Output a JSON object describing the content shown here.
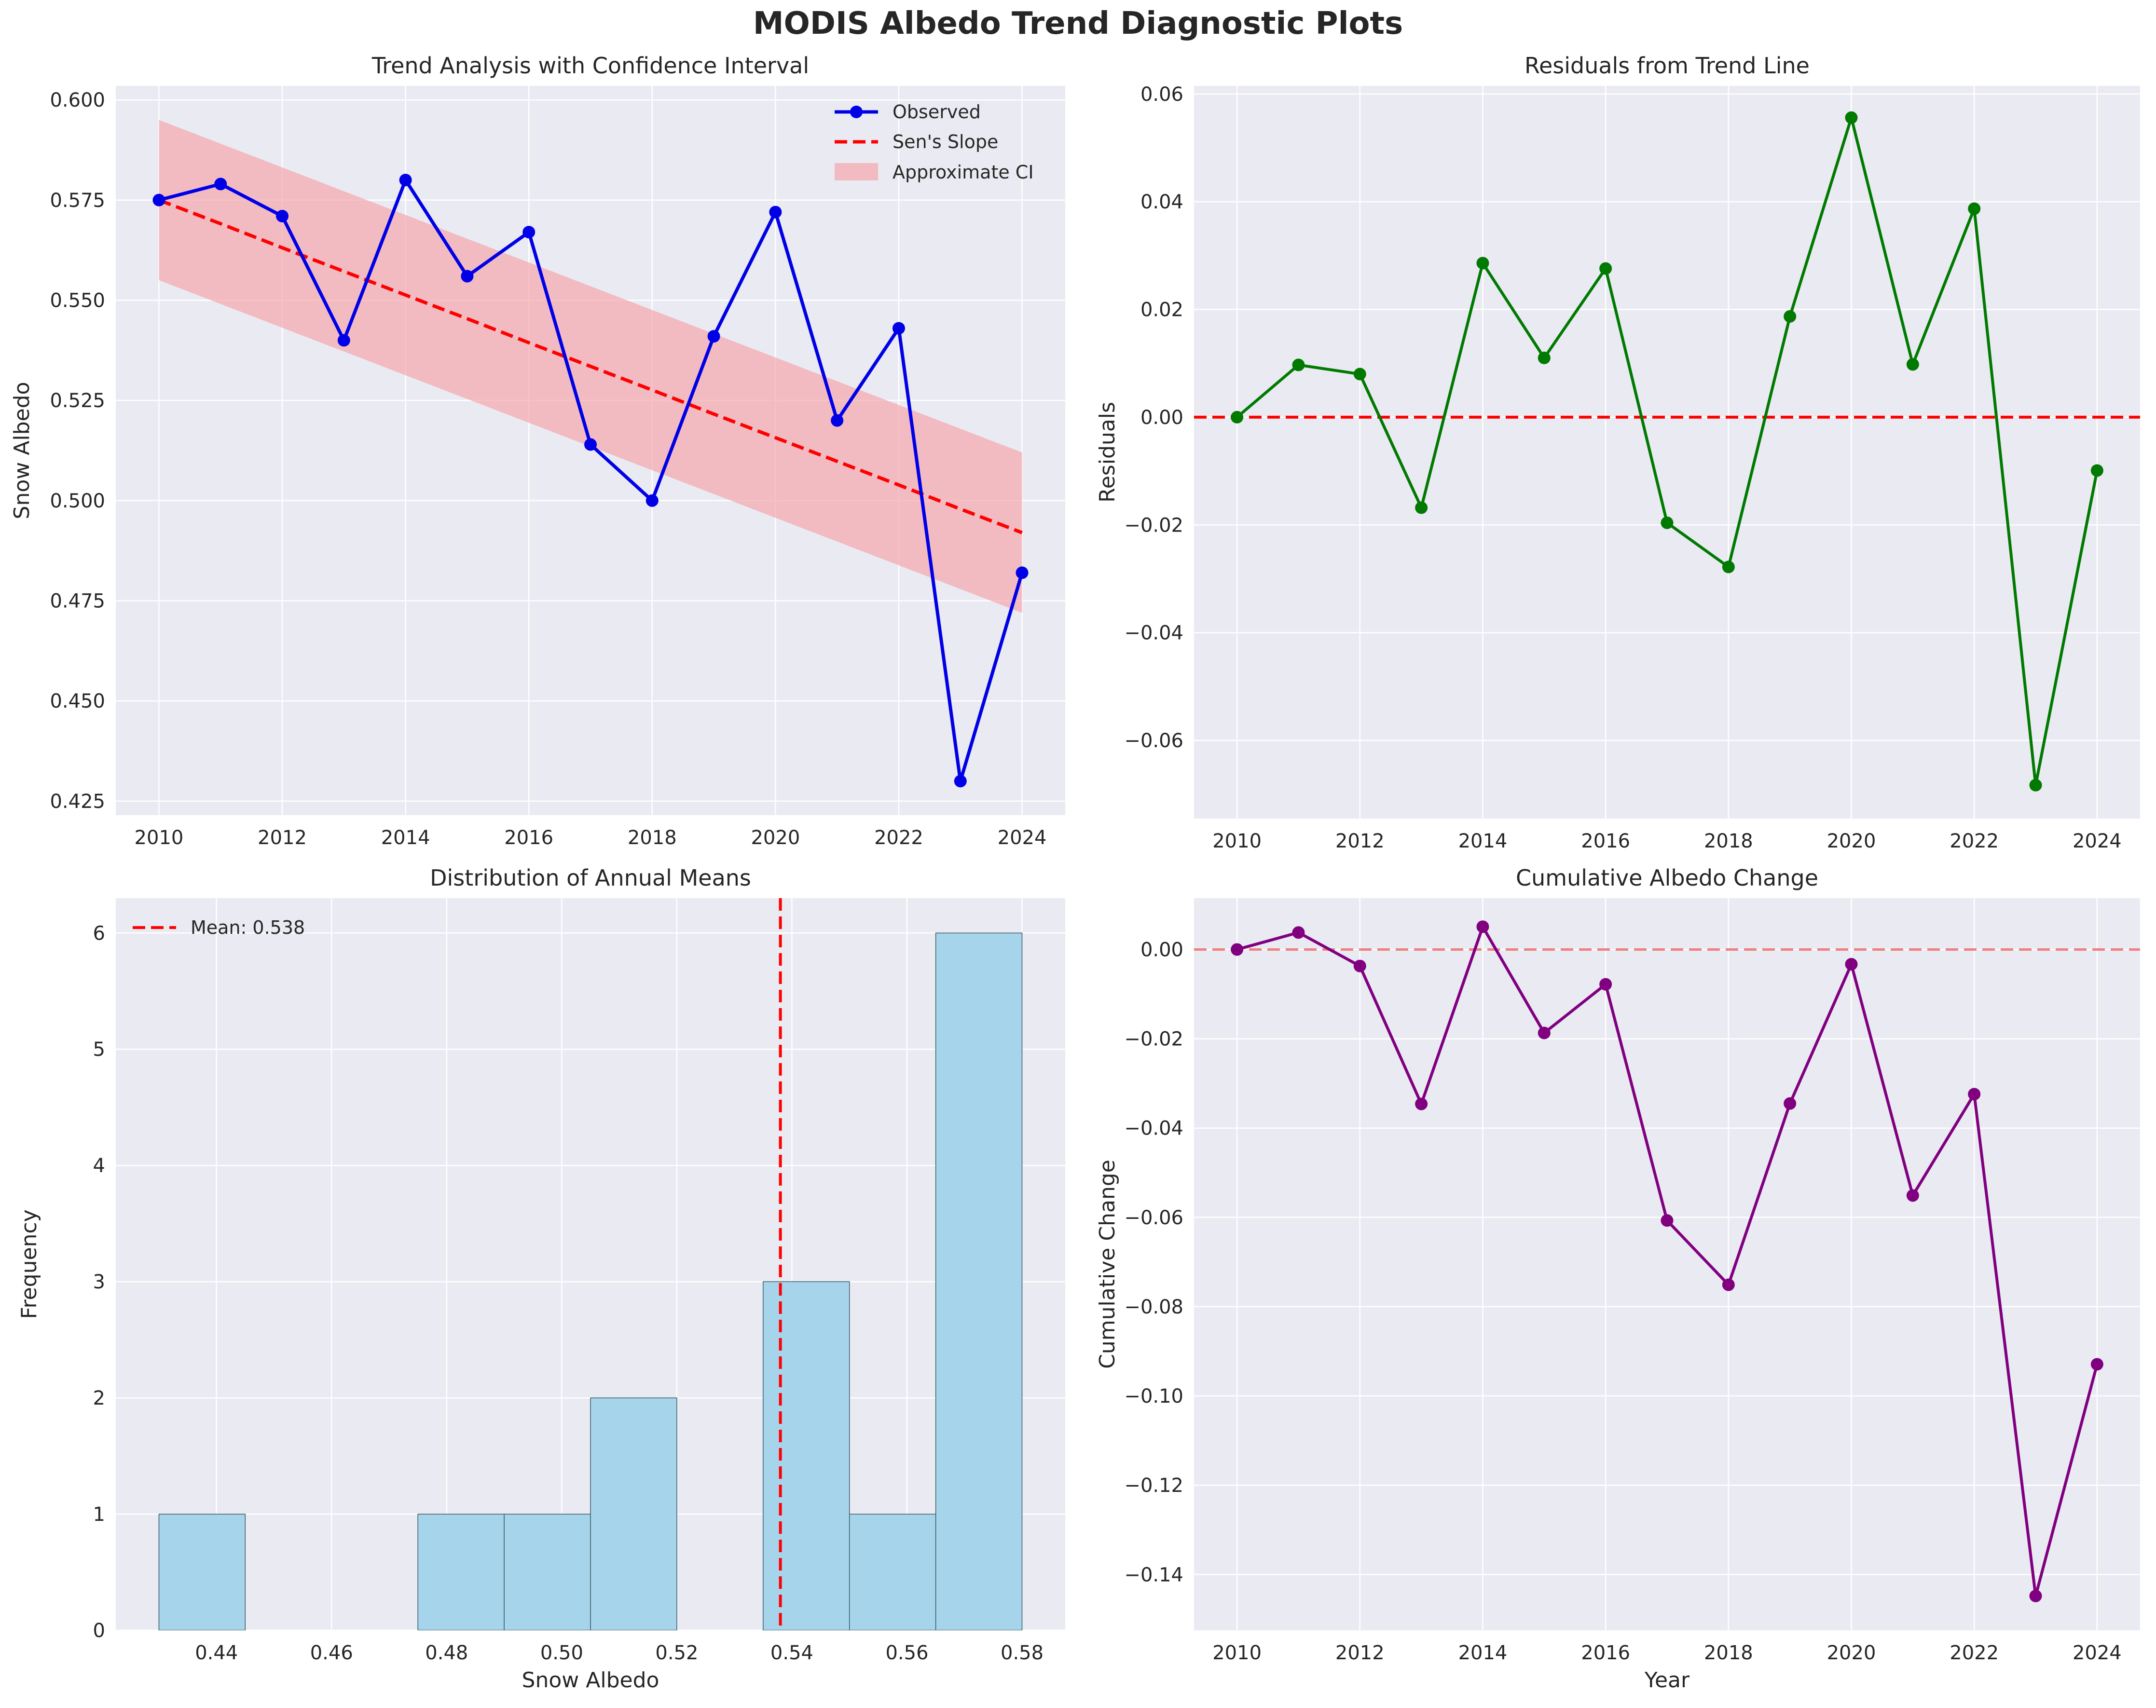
{
  "figure_title": "MODIS Albedo Trend Diagnostic Plots",
  "colors": {
    "panel_bg": "#eaeaf2",
    "grid": "#ffffff",
    "observed": "#0000e6",
    "sens_slope": "#ff0000",
    "ci_fill": "#f4a6ad",
    "residuals": "#007a00",
    "cumulative": "#800080",
    "hist_bar": "#a6d5eb",
    "hist_edge": "#3b5a6b",
    "zero_line_faint": "#f08080"
  },
  "chart_data": [
    {
      "type": "line",
      "title": "Trend Analysis with Confidence Interval",
      "xlabel": "",
      "ylabel": "Snow Albedo",
      "xlim": [
        2009.3,
        2024.7
      ],
      "ylim": [
        0.4215,
        0.6035
      ],
      "xticks": [
        2010,
        2012,
        2014,
        2016,
        2018,
        2020,
        2022,
        2024
      ],
      "yticks": [
        0.425,
        0.45,
        0.475,
        0.5,
        0.525,
        0.55,
        0.575,
        0.6
      ],
      "ytick_labels": [
        "0.425",
        "0.450",
        "0.475",
        "0.500",
        "0.525",
        "0.550",
        "0.575",
        "0.600"
      ],
      "grid": true,
      "legend_placement": "top-right",
      "x": [
        2010,
        2011,
        2012,
        2013,
        2014,
        2015,
        2016,
        2017,
        2018,
        2019,
        2020,
        2021,
        2022,
        2023,
        2024
      ],
      "series": [
        {
          "name": "Observed",
          "values": [
            0.575,
            0.579,
            0.571,
            0.54,
            0.58,
            0.556,
            0.567,
            0.514,
            0.5,
            0.541,
            0.572,
            0.52,
            0.543,
            0.43,
            0.482
          ]
        },
        {
          "name": "Sen's Slope",
          "values": [
            0.575,
            0.5691,
            0.5631,
            0.5572,
            0.5513,
            0.5454,
            0.5394,
            0.5335,
            0.5276,
            0.5216,
            0.5157,
            0.5098,
            0.5039,
            0.4979,
            0.492
          ]
        }
      ],
      "band": {
        "name": "Approximate CI",
        "x": [
          2010,
          2024
        ],
        "lower": [
          0.555,
          0.472
        ],
        "upper": [
          0.595,
          0.512
        ]
      }
    },
    {
      "type": "line",
      "title": "Residuals from Trend Line",
      "xlabel": "",
      "ylabel": "Residuals",
      "xlim": [
        2009.3,
        2024.7
      ],
      "ylim": [
        -0.0745,
        0.0615
      ],
      "xticks": [
        2010,
        2012,
        2014,
        2016,
        2018,
        2020,
        2022,
        2024
      ],
      "yticks": [
        -0.06,
        -0.04,
        -0.02,
        0.0,
        0.02,
        0.04,
        0.06
      ],
      "ytick_labels": [
        "−0.06",
        "−0.04",
        "−0.02",
        "0.00",
        "0.02",
        "0.04",
        "0.06"
      ],
      "grid": true,
      "x": [
        2010,
        2011,
        2012,
        2013,
        2014,
        2015,
        2016,
        2017,
        2018,
        2019,
        2020,
        2021,
        2022,
        2023,
        2024
      ],
      "series": [
        {
          "values": [
            0.0,
            0.0097,
            0.008,
            -0.0168,
            0.0286,
            0.011,
            0.0276,
            -0.0196,
            -0.0278,
            0.0187,
            0.0556,
            0.0098,
            0.0387,
            -0.0683,
            -0.0099
          ]
        }
      ],
      "reference_line": {
        "y": 0,
        "style": "dashed"
      }
    },
    {
      "type": "bar",
      "title": "Distribution of Annual Means",
      "xlabel": "Snow Albedo",
      "ylabel": "Frequency",
      "xlim": [
        0.4225,
        0.5875
      ],
      "ylim": [
        0,
        6.3
      ],
      "xticks": [
        0.44,
        0.46,
        0.48,
        0.5,
        0.52,
        0.54,
        0.56,
        0.58
      ],
      "xtick_labels": [
        "0.44",
        "0.46",
        "0.48",
        "0.50",
        "0.52",
        "0.54",
        "0.56",
        "0.58"
      ],
      "yticks": [
        0,
        1,
        2,
        3,
        4,
        5,
        6
      ],
      "grid": true,
      "legend_placement": "top-left",
      "bin_edges": [
        0.43,
        0.445,
        0.46,
        0.475,
        0.49,
        0.505,
        0.52,
        0.535,
        0.55,
        0.565,
        0.58
      ],
      "values": [
        1,
        0,
        0,
        1,
        1,
        2,
        0,
        3,
        1,
        6
      ],
      "mean_line": {
        "x": 0.538,
        "label": "Mean: 0.538"
      }
    },
    {
      "type": "line",
      "title": "Cumulative Albedo Change",
      "xlabel": "Year",
      "ylabel": "Cumulative Change",
      "xlim": [
        2009.3,
        2024.7
      ],
      "ylim": [
        -0.1525,
        0.0115
      ],
      "xticks": [
        2010,
        2012,
        2014,
        2016,
        2018,
        2020,
        2022,
        2024
      ],
      "yticks": [
        -0.14,
        -0.12,
        -0.1,
        -0.08,
        -0.06,
        -0.04,
        -0.02,
        0.0
      ],
      "ytick_labels": [
        "−0.14",
        "−0.12",
        "−0.10",
        "−0.08",
        "−0.06",
        "−0.04",
        "−0.02",
        "0.00"
      ],
      "grid": true,
      "x": [
        2010,
        2011,
        2012,
        2013,
        2014,
        2015,
        2016,
        2017,
        2018,
        2019,
        2020,
        2021,
        2022,
        2023,
        2024
      ],
      "series": [
        {
          "values": [
            0.0,
            0.0038,
            -0.0037,
            -0.0346,
            0.0051,
            -0.0187,
            -0.0078,
            -0.0607,
            -0.0751,
            -0.0345,
            -0.0033,
            -0.0551,
            -0.0324,
            -0.1448,
            -0.0929
          ]
        }
      ],
      "reference_line": {
        "y": 0,
        "style": "dashed"
      }
    }
  ]
}
